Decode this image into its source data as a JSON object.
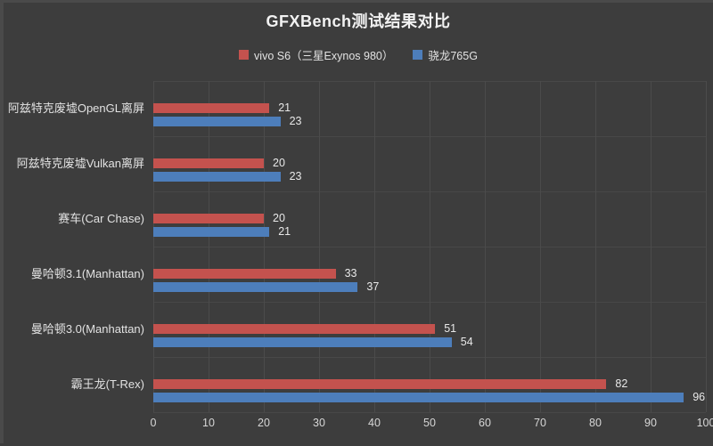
{
  "title": "GFXBench测试结果对比",
  "legend": {
    "items": [
      {
        "label": "vivo S6（三星Exynos 980）",
        "color": "#c4524e"
      },
      {
        "label": "骁龙765G",
        "color": "#4d7ebb"
      }
    ]
  },
  "chart_data": {
    "type": "bar",
    "orientation": "horizontal",
    "title": "GFXBench测试结果对比",
    "categories": [
      "阿兹特克废墟OpenGL离屏",
      "阿兹特克废墟Vulkan离屏",
      "赛车(Car Chase)",
      "曼哈顿3.1(Manhattan)",
      "曼哈顿3.0(Manhattan)",
      "霸王龙(T-Rex)"
    ],
    "series": [
      {
        "name": "vivo S6（三星Exynos 980）",
        "color": "#c4524e",
        "values": [
          21,
          20,
          20,
          33,
          51,
          82
        ]
      },
      {
        "name": "骁龙765G",
        "color": "#4d7ebb",
        "values": [
          23,
          23,
          21,
          37,
          54,
          96
        ]
      }
    ],
    "xlim": [
      0,
      100
    ],
    "xticks": [
      0,
      10,
      20,
      30,
      40,
      50,
      60,
      70,
      80,
      90,
      100
    ],
    "grid": true,
    "legend_position": "top",
    "value_labels": true,
    "colors": {
      "background": "#3d3d3d",
      "gridline": "#4b4b4b",
      "text": "#e2e2e2",
      "tick_text": "#d6d6d6"
    }
  }
}
